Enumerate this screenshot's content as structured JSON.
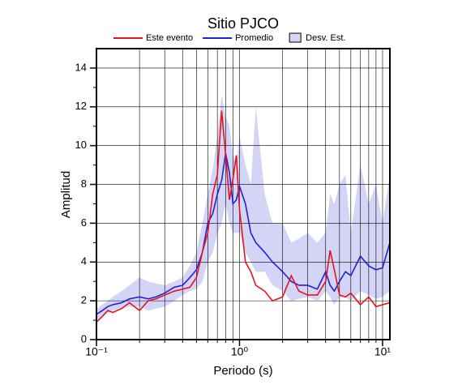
{
  "chart_data": {
    "type": "line",
    "title": "Sitio PJCO",
    "xlabel": "Periodo (s)",
    "ylabel": "Amplitud",
    "xscale": "log",
    "xlim": [
      0.1,
      11.25
    ],
    "ylim": [
      0,
      15
    ],
    "xticks": [
      {
        "value": 0.1,
        "label": "10⁻¹"
      },
      {
        "value": 1,
        "label": "10⁰"
      },
      {
        "value": 10,
        "label": "10¹"
      }
    ],
    "xminorticks": [
      0.2,
      0.3,
      0.4,
      0.5,
      0.6,
      0.7,
      0.8,
      0.9,
      2,
      3,
      4,
      5,
      6,
      7,
      8,
      9
    ],
    "yticks": [
      0,
      2,
      4,
      6,
      8,
      10,
      12,
      14
    ],
    "yminorticks": [
      1,
      3,
      5,
      7,
      9,
      11,
      13
    ],
    "grid": true,
    "legend": "top",
    "x": [
      0.1,
      0.11,
      0.12,
      0.13,
      0.15,
      0.17,
      0.2,
      0.23,
      0.26,
      0.3,
      0.35,
      0.4,
      0.45,
      0.5,
      0.55,
      0.6,
      0.65,
      0.7,
      0.75,
      0.8,
      0.85,
      0.9,
      0.95,
      1.0,
      1.1,
      1.2,
      1.3,
      1.5,
      1.7,
      2.0,
      2.3,
      2.6,
      3.0,
      3.5,
      4.0,
      4.3,
      4.6,
      5,
      5.5,
      6,
      7,
      8,
      9,
      10,
      11.25
    ],
    "series": [
      {
        "name": "Este evento",
        "color": "#e8141c",
        "values": [
          0.9,
          1.2,
          1.5,
          1.4,
          1.6,
          1.9,
          1.5,
          2.0,
          2.1,
          2.3,
          2.5,
          2.6,
          2.7,
          3.2,
          4.5,
          5.5,
          7.5,
          8.5,
          11.8,
          9.5,
          7.2,
          8.3,
          9.5,
          6.7,
          4.0,
          3.5,
          2.8,
          2.5,
          2.0,
          2.2,
          3.3,
          2.5,
          2.3,
          2.3,
          3.0,
          4.6,
          3.6,
          2.3,
          2.2,
          2.4,
          1.8,
          2.2,
          1.7,
          1.8,
          1.9
        ]
      },
      {
        "name": "Promedio",
        "color": "#1e22d6",
        "values": [
          1.3,
          1.5,
          1.7,
          1.8,
          1.9,
          2.1,
          2.2,
          2.1,
          2.2,
          2.4,
          2.7,
          2.8,
          3.2,
          3.6,
          4.5,
          6.0,
          6.5,
          7.5,
          8.2,
          9.6,
          8.6,
          7.0,
          7.2,
          7.9,
          7.0,
          5.5,
          5.0,
          4.5,
          4.0,
          3.5,
          3.0,
          2.8,
          2.8,
          2.6,
          3.5,
          2.8,
          2.5,
          3.0,
          3.5,
          3.3,
          4.3,
          3.8,
          3.6,
          3.7,
          5.0
        ]
      },
      {
        "name": "Desv. Est.",
        "color": "#d4d4f7",
        "type": "band",
        "upper": [
          1.6,
          1.8,
          2.0,
          2.2,
          2.5,
          2.8,
          3.2,
          3.0,
          2.9,
          2.8,
          3.0,
          3.2,
          3.8,
          4.5,
          6.0,
          7.5,
          8.8,
          10.5,
          12.6,
          11.5,
          11.0,
          9.5,
          9.0,
          10.5,
          9.0,
          8.0,
          12.0,
          7.5,
          6.0,
          6.0,
          5.0,
          5.2,
          5.5,
          5.0,
          5.5,
          7.5,
          7.0,
          8.0,
          8.5,
          5.5,
          9.0,
          7.0,
          8.0,
          6.0,
          8.5
        ],
        "lower": [
          1.0,
          1.2,
          1.4,
          1.5,
          1.6,
          1.7,
          1.7,
          1.5,
          1.6,
          1.7,
          2.0,
          2.3,
          2.5,
          2.6,
          3.0,
          4.0,
          4.5,
          5.5,
          6.0,
          7.0,
          6.0,
          5.5,
          5.5,
          5.5,
          4.5,
          4.0,
          3.5,
          3.5,
          2.8,
          2.5,
          2.0,
          2.1,
          2.2,
          2.0,
          2.5,
          2.2,
          1.8,
          2.2,
          2.2,
          2.0,
          2.5,
          2.3,
          2.1,
          2.2,
          2.5
        ]
      }
    ]
  }
}
